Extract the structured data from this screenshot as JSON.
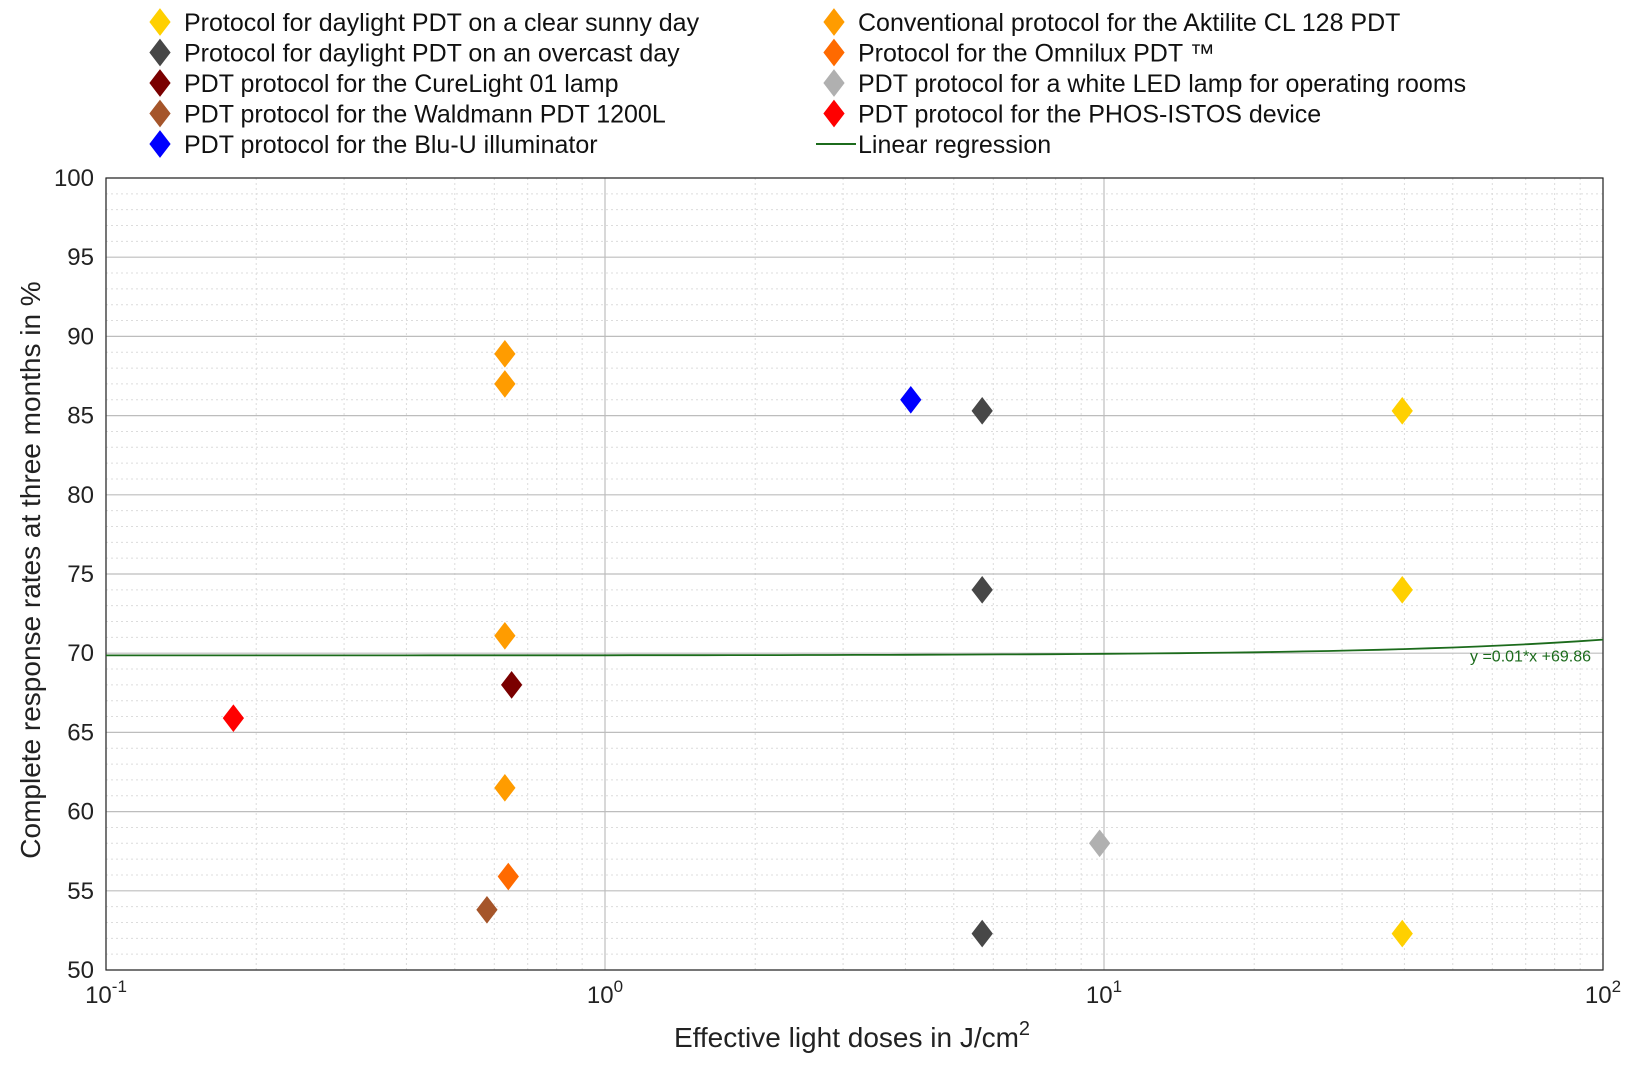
{
  "chart_data": {
    "type": "scatter",
    "title": "",
    "xlabel": "Effective light doses in J/cm",
    "xlabel_superscript": "2",
    "ylabel": "Complete response rates at three months in %",
    "x_scale": "log",
    "xlim": [
      0.1,
      100
    ],
    "ylim": [
      50,
      100
    ],
    "grid": true,
    "legend_position": "top",
    "x_ticks": [
      {
        "value": 0.1,
        "base": "10",
        "exp": "-1"
      },
      {
        "value": 1,
        "base": "10",
        "exp": "0"
      },
      {
        "value": 10,
        "base": "10",
        "exp": "1"
      },
      {
        "value": 100,
        "base": "10",
        "exp": "2"
      }
    ],
    "y_ticks": [
      "50",
      "55",
      "60",
      "65",
      "70",
      "75",
      "80",
      "85",
      "90",
      "95",
      "100"
    ],
    "series": [
      {
        "name": "Protocol for daylight PDT on a clear sunny day",
        "color": "#FFD000",
        "marker": "diamond",
        "points": [
          [
            39.6,
            85.3
          ],
          [
            39.6,
            74.0
          ],
          [
            39.6,
            52.3
          ]
        ]
      },
      {
        "name": "Protocol for daylight PDT on an overcast day",
        "color": "#474747",
        "marker": "diamond",
        "points": [
          [
            5.7,
            85.3
          ],
          [
            5.7,
            74.0
          ],
          [
            5.7,
            52.3
          ]
        ]
      },
      {
        "name": "PDT protocol for the CureLight 01 lamp",
        "color": "#7A0000",
        "marker": "diamond",
        "points": [
          [
            0.65,
            68.0
          ]
        ]
      },
      {
        "name": "PDT protocol for the Waldmann PDT 1200L",
        "color": "#A5552A",
        "marker": "diamond",
        "points": [
          [
            0.58,
            53.8
          ]
        ]
      },
      {
        "name": "PDT protocol for the Blu-U illuminator",
        "color": "#0000FF",
        "marker": "diamond",
        "points": [
          [
            4.1,
            86.0
          ]
        ]
      },
      {
        "name": "Conventional protocol for the Aktilite CL 128 PDT",
        "color": "#FF9C00",
        "marker": "diamond",
        "points": [
          [
            0.63,
            88.9
          ],
          [
            0.63,
            87.0
          ],
          [
            0.63,
            71.1
          ],
          [
            0.63,
            61.5
          ]
        ]
      },
      {
        "name": "Protocol for the Omnilux PDT ™",
        "color": "#FF6A00",
        "marker": "diamond",
        "points": [
          [
            0.64,
            55.9
          ]
        ]
      },
      {
        "name": "PDT protocol for a white LED lamp for operating rooms",
        "color": "#B0B0B0",
        "marker": "diamond",
        "points": [
          [
            9.8,
            58.0
          ]
        ]
      },
      {
        "name": "PDT protocol for the PHOS-ISTOS device",
        "color": "#FF0000",
        "marker": "diamond",
        "points": [
          [
            0.18,
            65.9
          ]
        ]
      }
    ],
    "regression": {
      "name": "Linear regression",
      "color": "#1C6B1C",
      "slope": 0.01,
      "intercept": 69.86,
      "equation_label": "y =0.01*x +69.86"
    }
  }
}
